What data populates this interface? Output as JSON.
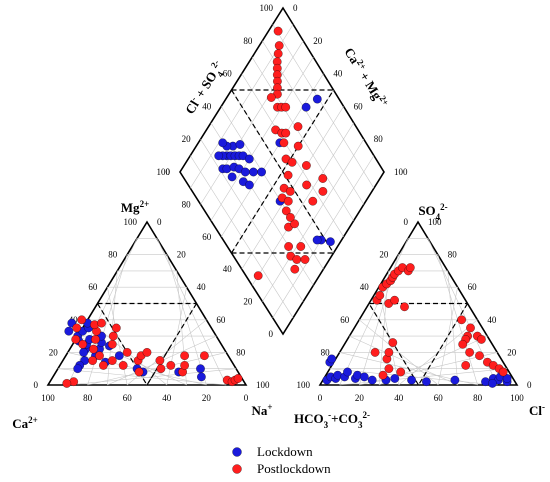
{
  "chart_data": {
    "type": "scatter",
    "title": "",
    "colors": {
      "Lockdown": "#1a1adc",
      "Postlockdown": "#ff1e1e"
    },
    "tick_values": [
      0,
      20,
      40,
      60,
      80,
      100
    ],
    "diamond_tick_values": [
      0,
      20,
      40,
      60,
      80,
      100
    ],
    "labels": {
      "cation_left": "Ca",
      "cation_left_sup": "2+",
      "cation_top": "Mg",
      "cation_top_sup": "2+",
      "cation_right": "Na",
      "cation_right_sup": "+",
      "anion_left": "HCO",
      "anion_left_sub": "3",
      "anion_left_sup": "-",
      "anion_left_plus": "+CO",
      "anion_left_sub2": "3",
      "anion_left_sup2": "2-",
      "anion_top": "SO",
      "anion_top_sub": "4",
      "anion_top_sup": "2-",
      "anion_right": "Cl",
      "anion_right_sup": "-",
      "diamond_left": "Cl",
      "diamond_left_sup": "-",
      "diamond_left_plus": " + SO",
      "diamond_left_sub": "4",
      "diamond_left_sup2": "2-",
      "diamond_right": "Ca",
      "diamond_right_sup": "2+",
      "diamond_right_plus": " + Mg",
      "diamond_right_sup2": "2+"
    },
    "legend": [
      {
        "name": "Lockdown",
        "color": "#1a1adc"
      },
      {
        "name": "Postlockdown",
        "color": "#ff1e1e"
      }
    ],
    "series": [
      {
        "name": "Lockdown",
        "cation": [
          [
            70,
            22
          ],
          [
            68,
            25
          ],
          [
            72,
            20
          ],
          [
            65,
            28
          ],
          [
            70,
            30
          ],
          [
            67,
            18
          ],
          [
            63,
            22
          ],
          [
            60,
            26
          ],
          [
            74,
            15
          ],
          [
            78,
            12
          ],
          [
            80,
            10
          ],
          [
            66,
            33
          ],
          [
            62,
            35
          ],
          [
            58,
            30
          ],
          [
            71,
            27
          ],
          [
            64,
            14
          ],
          [
            55,
            18
          ],
          [
            50,
            10
          ],
          [
            48,
            8
          ],
          [
            30,
            8
          ],
          [
            20,
            5
          ],
          [
            18,
            10
          ],
          [
            73,
            33
          ],
          [
            69,
            38
          ],
          [
            61,
            38
          ],
          [
            57,
            24
          ]
        ],
        "anion": [
          [
            95,
            3,
            2
          ],
          [
            92,
            5,
            3
          ],
          [
            90,
            4,
            6
          ],
          [
            88,
            6,
            6
          ],
          [
            85,
            5,
            10
          ],
          [
            82,
            8,
            10
          ],
          [
            80,
            4,
            16
          ],
          [
            78,
            6,
            16
          ],
          [
            75,
            5,
            20
          ],
          [
            72,
            3,
            25
          ],
          [
            65,
            3,
            32
          ],
          [
            60,
            4,
            36
          ],
          [
            52,
            3,
            45
          ],
          [
            45,
            2,
            53
          ],
          [
            30,
            3,
            67
          ],
          [
            15,
            2,
            83
          ],
          [
            10,
            4,
            86
          ],
          [
            8,
            3,
            89
          ],
          [
            6,
            5,
            89
          ],
          [
            4,
            2,
            94
          ],
          [
            12,
            1,
            87
          ],
          [
            3,
            4,
            93
          ],
          [
            88,
            14,
            -2
          ],
          [
            86,
            16,
            -2
          ]
        ],
        "diamond": [
          [
            82,
            28
          ],
          [
            80,
            30
          ],
          [
            78,
            32
          ],
          [
            76,
            34
          ],
          [
            84,
            26
          ],
          [
            86,
            24
          ],
          [
            80,
            22
          ],
          [
            78,
            24
          ],
          [
            75,
            28
          ],
          [
            72,
            30
          ],
          [
            74,
            36
          ],
          [
            70,
            38
          ],
          [
            68,
            32
          ],
          [
            66,
            28
          ],
          [
            82,
            34
          ],
          [
            85,
            31
          ],
          [
            79,
            38
          ],
          [
            73,
            24
          ],
          [
            62,
            30
          ],
          [
            64,
            36
          ],
          [
            88,
            30
          ],
          [
            60,
            40
          ],
          [
            55,
            90
          ],
          [
            58,
            82
          ],
          [
            42,
            40
          ],
          [
            60,
            58
          ],
          [
            10,
            48
          ],
          [
            12,
            46
          ],
          [
            5,
            52
          ]
        ]
      },
      {
        "name": "Postlockdown",
        "cation": [
          [
            70,
            25
          ],
          [
            66,
            22
          ],
          [
            62,
            28
          ],
          [
            59,
            33
          ],
          [
            55,
            25
          ],
          [
            52,
            30
          ],
          [
            50,
            20
          ],
          [
            47,
            15
          ],
          [
            44,
            18
          ],
          [
            40,
            20
          ],
          [
            36,
            15
          ],
          [
            32,
            12
          ],
          [
            28,
            8
          ],
          [
            25,
            12
          ],
          [
            22,
            18
          ],
          [
            68,
            35
          ],
          [
            63,
            40
          ],
          [
            58,
            37
          ],
          [
            72,
            28
          ],
          [
            65,
            18
          ],
          [
            60,
            15
          ],
          [
            56,
            12
          ],
          [
            54,
            38
          ],
          [
            48,
            35
          ],
          [
            8,
            3
          ],
          [
            6,
            2
          ],
          [
            4,
            3
          ],
          [
            2,
            4
          ],
          [
            86,
            2
          ],
          [
            90,
            1
          ],
          [
            12,
            18
          ],
          [
            50,
            8
          ],
          [
            38,
            10
          ],
          [
            66,
            12
          ],
          [
            70,
            15
          ]
        ],
        "anion": [
          [
            45,
            52,
            3
          ],
          [
            42,
            55,
            3
          ],
          [
            38,
            60,
            2
          ],
          [
            35,
            62,
            3
          ],
          [
            32,
            64,
            4
          ],
          [
            30,
            66,
            4
          ],
          [
            28,
            68,
            4
          ],
          [
            25,
            70,
            5
          ],
          [
            22,
            72,
            6
          ],
          [
            20,
            70,
            10
          ],
          [
            18,
            72,
            10
          ],
          [
            40,
            50,
            10
          ],
          [
            36,
            52,
            12
          ],
          [
            33,
            48,
            19
          ],
          [
            8,
            40,
            52
          ],
          [
            6,
            35,
            59
          ],
          [
            5,
            30,
            65
          ],
          [
            4,
            28,
            68
          ],
          [
            10,
            30,
            60
          ],
          [
            12,
            28,
            60
          ],
          [
            15,
            25,
            60
          ],
          [
            14,
            20,
            66
          ],
          [
            10,
            18,
            72
          ],
          [
            8,
            14,
            78
          ],
          [
            6,
            12,
            82
          ],
          [
            4,
            10,
            86
          ],
          [
            3,
            8,
            89
          ],
          [
            20,
            12,
            68
          ],
          [
            62,
            20,
            18
          ],
          [
            58,
            16,
            26
          ],
          [
            55,
            20,
            25
          ],
          [
            50,
            26,
            24
          ],
          [
            60,
            10,
            30
          ],
          [
            55,
            8,
            37
          ],
          [
            65,
            6,
            29
          ]
        ],
        "diamond": [
          [
            95,
            92
          ],
          [
            90,
            88
          ],
          [
            88,
            85
          ],
          [
            86,
            82
          ],
          [
            84,
            80
          ],
          [
            82,
            78
          ],
          [
            80,
            76
          ],
          [
            78,
            74
          ],
          [
            76,
            72
          ],
          [
            78,
            68
          ],
          [
            72,
            68
          ],
          [
            70,
            70
          ],
          [
            68,
            72
          ],
          [
            66,
            60
          ],
          [
            62,
            62
          ],
          [
            60,
            64
          ],
          [
            58,
            60
          ],
          [
            52,
            56
          ],
          [
            48,
            58
          ],
          [
            46,
            52
          ],
          [
            44,
            46
          ],
          [
            42,
            42
          ],
          [
            40,
            48
          ],
          [
            38,
            44
          ],
          [
            36,
            40
          ],
          [
            34,
            58
          ],
          [
            30,
            36
          ],
          [
            28,
            40
          ],
          [
            24,
            30
          ],
          [
            20,
            28
          ],
          [
            18,
            36
          ],
          [
            16,
            30
          ],
          [
            14,
            26
          ],
          [
            12,
            34
          ],
          [
            28,
            68
          ],
          [
            24,
            64
          ],
          [
            50,
            66
          ],
          [
            56,
            72
          ],
          [
            30,
            6
          ],
          [
            32,
            40
          ],
          [
            26,
            56
          ],
          [
            40,
            64
          ]
        ]
      }
    ]
  }
}
